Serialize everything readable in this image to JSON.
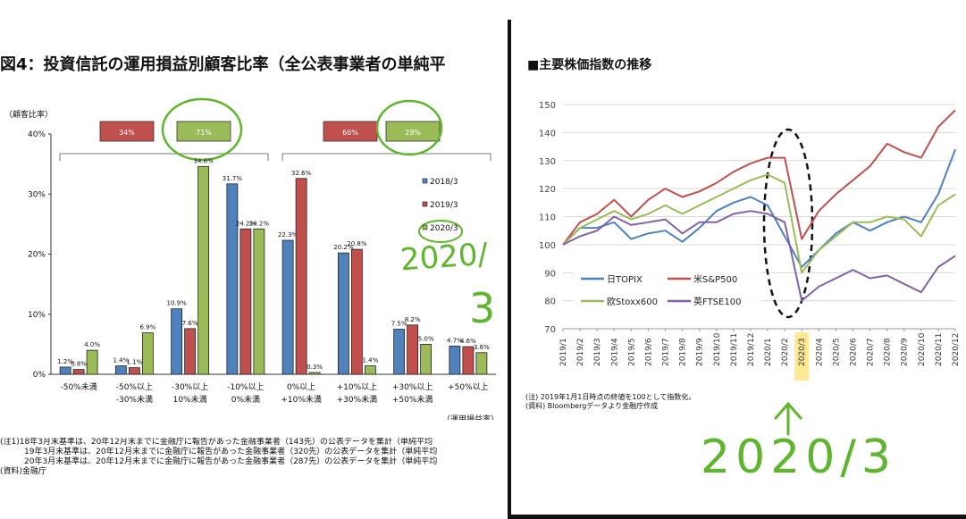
{
  "left": {
    "title": "図4：投資信託の運用損益別顧客比率（全公表事業者の単純平",
    "ylabel": "（顧客比率）",
    "xunit": "（運用損益率）",
    "summary_boxes": [
      {
        "label": "34%",
        "color": "#c0504d"
      },
      {
        "label": "71%",
        "color": "#9bbb59"
      },
      {
        "label": "66%",
        "color": "#c0504d"
      },
      {
        "label": "29%",
        "color": "#9bbb59"
      }
    ],
    "notes": [
      "(注1)18年3月末基準は、20年12月末までに金融庁に報告があった金融事業者（143先）の公表データを集計（単純平均",
      "　　　19年3月末基準は、20年12月末までに金融庁に報告があった金融事業者（320先）の公表データを集計（単純平均",
      "　　　20年3月末基準は、20年12月末までに金融庁に報告があった金融事業者（287先）の公表データを集計（単純平均",
      "(資料)金融庁"
    ],
    "handwriting": {
      "line1": "2020/",
      "line2": "3"
    }
  },
  "right": {
    "title": "■主要株価指数の推移",
    "notes": [
      "(注) 2019年1月1日時点の終値を100として指数化。",
      "(資料) Bloombergデータより金融庁作成"
    ],
    "handwriting": "2020/3"
  },
  "colors": {
    "c2018": "#4f81bd",
    "c2019": "#c0504d",
    "c2020": "#9bbb59",
    "topix": "#4f81bd",
    "sp500": "#c0504d",
    "stoxx": "#9bbb59",
    "ftse": "#8064a2",
    "pen": "#5fb52d",
    "highlight": "#ffe066"
  },
  "chart_data": [
    {
      "type": "bar",
      "title": "図4：投資信託の運用損益別顧客比率（全公表事業者の単純平",
      "ylabel": "（顧客比率）",
      "xlabel": "（運用損益率）",
      "ylim": [
        0,
        40
      ],
      "yticks": [
        "0%",
        "10%",
        "20%",
        "30%",
        "40%"
      ],
      "categories": [
        [
          "-50%未満",
          ""
        ],
        [
          "-50%以上",
          "-30%未満"
        ],
        [
          "-30%以上",
          "10%未満"
        ],
        [
          "-10%以上",
          "0%未満"
        ],
        [
          "0%以上",
          "+10%未満"
        ],
        [
          "+10%以上",
          "+30%未満"
        ],
        [
          "+30%以上",
          "+50%未満"
        ],
        [
          "+50%以上",
          ""
        ]
      ],
      "series": [
        {
          "name": "2018/3",
          "values": [
            1.2,
            1.4,
            10.9,
            31.7,
            22.3,
            20.2,
            7.5,
            4.7
          ],
          "labels": [
            "1.2%",
            "1.4%",
            "10.9%",
            "31.7%",
            "22.3%",
            "20.2%",
            "7.5%",
            "4.7%"
          ]
        },
        {
          "name": "2019/3",
          "values": [
            0.8,
            1.1,
            7.6,
            24.2,
            32.6,
            20.8,
            8.2,
            4.6
          ],
          "labels": [
            "0.8%",
            "1.1%",
            "7.6%",
            "24.2%",
            "32.6%",
            "20.8%",
            "8.2%",
            "4.6%"
          ]
        },
        {
          "name": "2020/3",
          "values": [
            4.0,
            6.9,
            34.6,
            24.2,
            0.3,
            1.4,
            5.0,
            3.6
          ],
          "labels": [
            "4.0%",
            "6.9%",
            "34.6%",
            "24.2%",
            "0.3%",
            "1.4%",
            "5.0%",
            "3.6%"
          ]
        }
      ],
      "legend_position": "right",
      "grid": false
    },
    {
      "type": "line",
      "title": "■主要株価指数の推移",
      "ylim": [
        70,
        150
      ],
      "yticks": [
        70,
        80,
        90,
        100,
        110,
        120,
        130,
        140,
        150
      ],
      "x": [
        "2019/1",
        "2019/2",
        "2019/3",
        "2019/4",
        "2019/5",
        "2019/6",
        "2019/7",
        "2019/8",
        "2019/9",
        "2019/10",
        "2019/11",
        "2019/12",
        "2020/1",
        "2020/2",
        "2020/3",
        "2020/4",
        "2020/5",
        "2020/6",
        "2020/7",
        "2020/8",
        "2020/9",
        "2020/10",
        "2020/11",
        "2020/12"
      ],
      "series": [
        {
          "name": "日TOPIX",
          "values": [
            100,
            106,
            106,
            108,
            102,
            104,
            105,
            101,
            106,
            112,
            115,
            117,
            114,
            103,
            92,
            98,
            104,
            108,
            105,
            108,
            110,
            108,
            118,
            134
          ]
        },
        {
          "name": "米S&P500",
          "values": [
            100,
            108,
            111,
            116,
            110,
            116,
            120,
            117,
            119,
            122,
            126,
            129,
            131,
            131,
            102,
            112,
            118,
            123,
            128,
            136,
            133,
            131,
            142,
            148
          ]
        },
        {
          "name": "欧Stoxx600",
          "values": [
            100,
            106,
            109,
            112,
            109,
            111,
            114,
            111,
            114,
            117,
            120,
            123,
            125,
            122,
            90,
            98,
            103,
            108,
            108,
            110,
            109,
            103,
            114,
            118
          ]
        },
        {
          "name": "英FTSE100",
          "values": [
            100,
            103,
            105,
            110,
            107,
            108,
            109,
            104,
            108,
            108,
            111,
            112,
            111,
            108,
            80,
            85,
            88,
            91,
            88,
            89,
            86,
            83,
            92,
            96
          ]
        }
      ],
      "legend_position": "bottom-left",
      "grid": true,
      "highlight": "2020/3"
    }
  ]
}
